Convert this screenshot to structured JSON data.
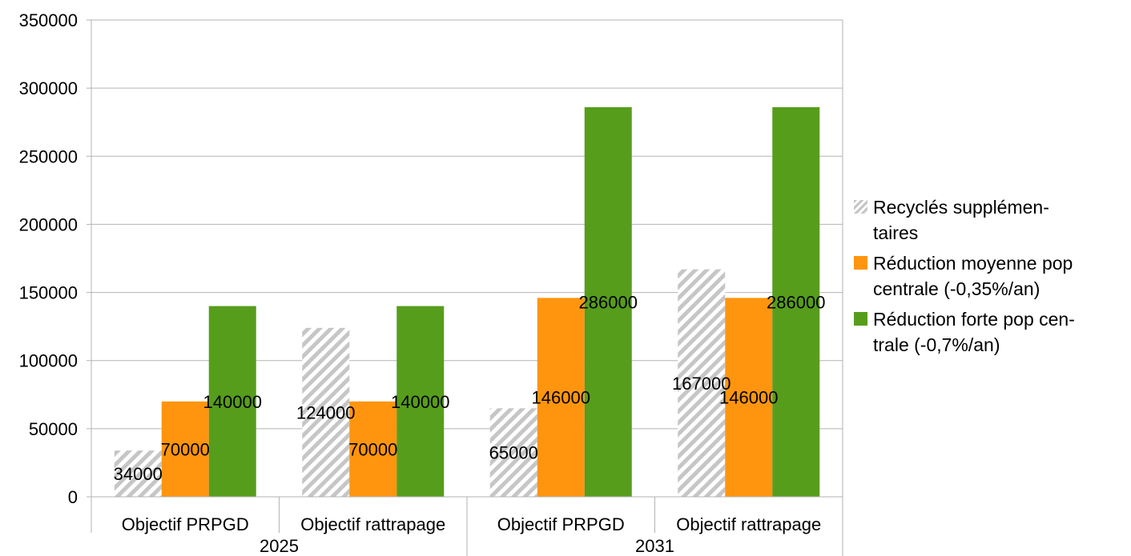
{
  "chart_data": {
    "type": "bar",
    "title": "",
    "xlabel": "",
    "ylabel": "",
    "ylim": [
      0,
      350000
    ],
    "yticks": [
      0,
      50000,
      100000,
      150000,
      200000,
      250000,
      300000,
      350000
    ],
    "grid": true,
    "legend_position": "right",
    "groups": [
      {
        "label": "2025",
        "categories": [
          "Objectif PRPGD",
          "Objectif rattrapage"
        ]
      },
      {
        "label": "2031",
        "categories": [
          "Objectif PRPGD",
          "Objectif rattrapage"
        ]
      }
    ],
    "series": [
      {
        "name": "Recyclés supplémen-taires",
        "legend_lines": [
          "Recyclés supplémen-",
          "taires"
        ],
        "color": "#c6c6c6",
        "pattern": "hatch",
        "values": [
          34000,
          124000,
          65000,
          167000
        ]
      },
      {
        "name": "Réduction moyenne pop centrale (-0,35%/an)",
        "legend_lines": [
          "Réduction moyenne pop",
          "centrale (-0,35%/an)"
        ],
        "color": "#ff950e",
        "pattern": "solid",
        "values": [
          70000,
          70000,
          146000,
          146000
        ]
      },
      {
        "name": "Réduction forte pop centrale (-0,7%/an)",
        "legend_lines": [
          "Réduction forte pop cen-",
          "trale (-0,7%/an)"
        ],
        "color": "#579d1c",
        "pattern": "solid",
        "values": [
          140000,
          140000,
          286000,
          286000
        ]
      }
    ]
  }
}
